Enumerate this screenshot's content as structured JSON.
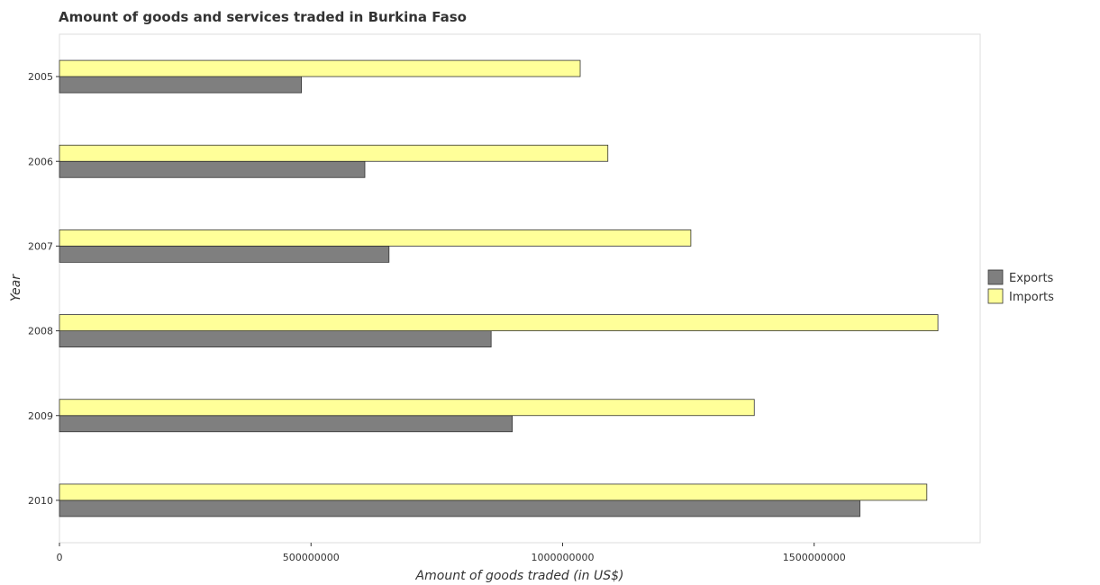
{
  "chart_data": {
    "type": "bar",
    "orientation": "horizontal",
    "title": "Amount of goods and services traded in Burkina Faso",
    "xlabel": "Amount of goods traded (in US$)",
    "ylabel": "Year",
    "categories": [
      "2005",
      "2006",
      "2007",
      "2008",
      "2009",
      "2010"
    ],
    "series": [
      {
        "name": "Exports",
        "color": "#7f7f7f",
        "values": [
          481000000,
          607000000,
          655000000,
          858000000,
          900000000,
          1591000000
        ]
      },
      {
        "name": "Imports",
        "color": "#ffff99",
        "values": [
          1035000000,
          1090000000,
          1255000000,
          1746000000,
          1381000000,
          1724000000
        ]
      }
    ],
    "xlim": [
      0,
      1830000000
    ],
    "xticks": [
      0,
      500000000,
      1000000000,
      1500000000
    ],
    "xtick_labels": [
      "0",
      "500000000",
      "1000000000",
      "1500000000"
    ],
    "grid": false,
    "legend_position": "right"
  }
}
